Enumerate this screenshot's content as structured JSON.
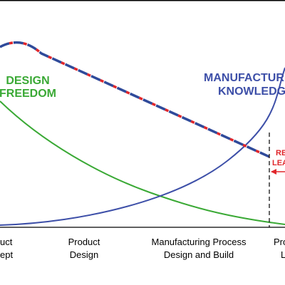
{
  "labels": {
    "design_freedom": [
      "DESIGN",
      "FREEDOM"
    ],
    "manufacturing_knowledge": [
      "MANUFACTURING",
      "KNOWLEDGE"
    ],
    "callout": [
      "RE",
      "LEA"
    ]
  },
  "stages": {
    "concept": [
      "uct",
      "ept"
    ],
    "product_design": [
      "Product",
      "Design"
    ],
    "manufacturing": [
      "Manufacturing Process",
      "Design and Build"
    ],
    "production": [
      "Pro",
      "L"
    ]
  },
  "colors": {
    "design_freedom": "#3aa935",
    "manufacturing_knowledge": "#3d4fa8",
    "dashed_blue": "#2f4a9a",
    "dashed_red": "#e0262b",
    "callout": "#e0262b",
    "frame": "#000000",
    "text": "#000000"
  }
}
